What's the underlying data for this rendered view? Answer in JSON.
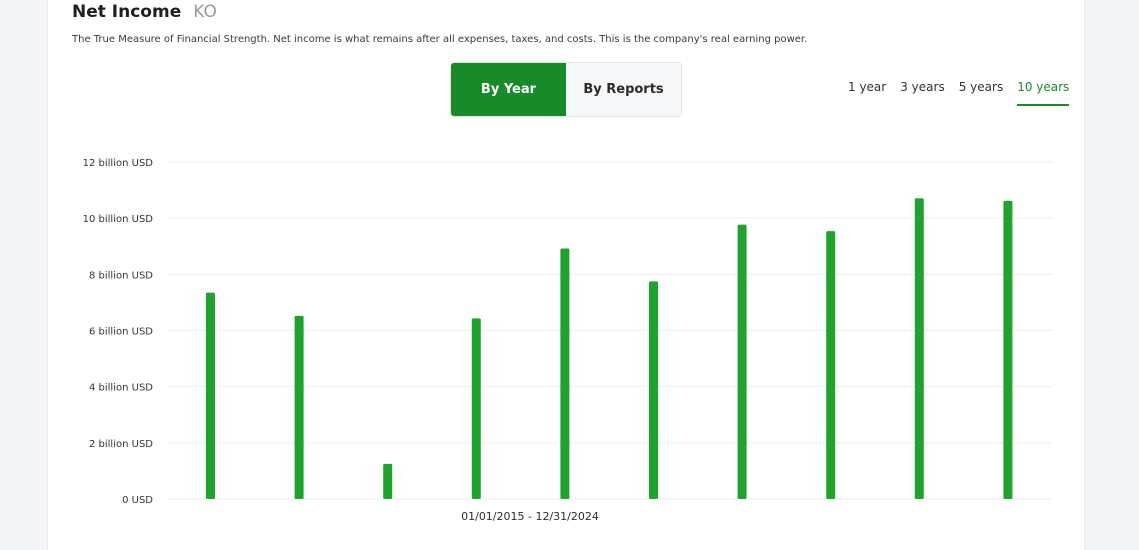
{
  "header": {
    "title": "Net Income",
    "ticker": "KO",
    "subtitle": "The True Measure of Financial Strength. Net income is what remains after all expenses, taxes, and costs. This is the company's real earning power."
  },
  "view_toggle": {
    "by_year": "By Year",
    "by_reports": "By Reports",
    "selected": "By Year"
  },
  "ranges": [
    {
      "label": "1 year",
      "active": false
    },
    {
      "label": "3 years",
      "active": false
    },
    {
      "label": "5 years",
      "active": false
    },
    {
      "label": "10 years",
      "active": true
    }
  ],
  "date_range": "01/01/2015 - 12/31/2024",
  "colors": {
    "accent": "#178a2a",
    "bar": "#1ea32c",
    "grid": "#eeeeee"
  },
  "chart_data": {
    "type": "bar",
    "categories": [
      "",
      "",
      "",
      "",
      "",
      "",
      "",
      "",
      "",
      ""
    ],
    "values": [
      7.35,
      6.52,
      1.25,
      6.43,
      8.92,
      7.75,
      9.77,
      9.54,
      10.71,
      10.62
    ],
    "unit": "billion USD",
    "ylim": [
      0,
      12
    ],
    "yticks": [
      0,
      2,
      4,
      6,
      8,
      10,
      12
    ],
    "ytick_labels": [
      "0 USD",
      "2 billion USD",
      "4 billion USD",
      "6 billion USD",
      "8 billion USD",
      "10 billion USD",
      "12 billion USD"
    ],
    "grid": true,
    "xlabel": "01/01/2015 - 12/31/2024"
  }
}
